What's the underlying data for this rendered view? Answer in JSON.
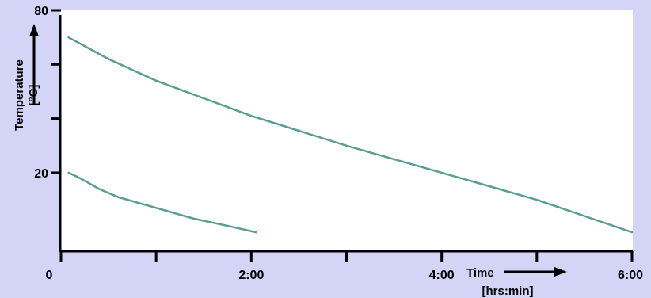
{
  "colors": {
    "background": "#d4d4f7",
    "plot_area": "#ffffff",
    "line": "#5b9e8f",
    "axis": "#000000"
  },
  "chart_data": {
    "type": "line",
    "title": "",
    "xlabel": "Time",
    "xlabel_unit": "[hrs:min]",
    "ylabel": "Temperature",
    "ylabel_unit": "[°C]",
    "xlim": [
      0,
      6
    ],
    "ylim": [
      -9,
      80
    ],
    "x_ticks": [
      {
        "v": 0,
        "label": "0"
      },
      {
        "v": 1,
        "label": ""
      },
      {
        "v": 2,
        "label": "2:00"
      },
      {
        "v": 3,
        "label": ""
      },
      {
        "v": 4,
        "label": "4:00"
      },
      {
        "v": 5,
        "label": ""
      },
      {
        "v": 6,
        "label": "6:00"
      }
    ],
    "y_ticks": [
      {
        "v": 20,
        "label": "20"
      },
      {
        "v": 40,
        "label": ""
      },
      {
        "v": 60,
        "label": ""
      },
      {
        "v": 80,
        "label": "80"
      }
    ],
    "grid": false,
    "series": [
      {
        "x": [
          0.08,
          0.5,
          1.0,
          1.5,
          2.0,
          2.5,
          3.0,
          3.5,
          4.0,
          4.5,
          5.0,
          5.5,
          6.0
        ],
        "y": [
          70,
          62,
          54,
          47.5,
          41,
          35.5,
          30,
          25,
          20,
          15,
          10,
          4,
          -2
        ]
      },
      {
        "x": [
          0.08,
          0.2,
          0.4,
          0.6,
          0.8,
          1.0,
          1.2,
          1.4,
          1.6,
          1.8,
          2.05
        ],
        "y": [
          20,
          18,
          14,
          11,
          9,
          7,
          5,
          3,
          1.5,
          0,
          -2
        ]
      }
    ]
  }
}
